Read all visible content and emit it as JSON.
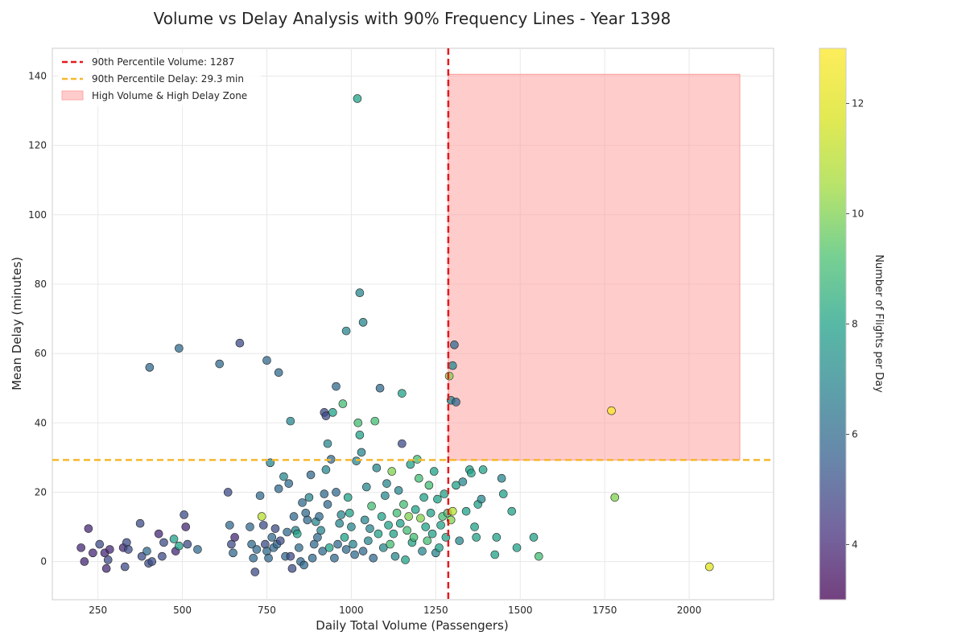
{
  "chart_data": {
    "type": "scatter",
    "title": "Volume vs Delay Analysis with 90% Frequency Lines - Year 1398",
    "xlabel": "Daily Total Volume (Passengers)",
    "ylabel": "Mean Delay (minutes)",
    "colorbar_label": "Number of Flights per Day",
    "xlim": [
      115,
      2250
    ],
    "ylim": [
      -11,
      148
    ],
    "xticks": [
      250,
      500,
      750,
      1000,
      1250,
      1500,
      1750,
      2000
    ],
    "yticks": [
      0,
      20,
      40,
      60,
      80,
      100,
      120,
      140
    ],
    "clim": [
      3,
      13
    ],
    "cticks": [
      4,
      6,
      8,
      10,
      12
    ],
    "colormap": "viridis",
    "grid": true,
    "legend_position": "top-left",
    "reference_lines": {
      "volume_p90": {
        "value": 1287,
        "label": "90th Percentile Volume: 1287",
        "color": "#e41a1c",
        "style": "dashed"
      },
      "delay_p90": {
        "value": 29.3,
        "label": "90th Percentile Delay: 29.3 min",
        "color": "#f5b82e",
        "style": "dashed"
      }
    },
    "zone": {
      "label": "High Volume & High Delay Zone",
      "x": [
        1287,
        2150
      ],
      "y": [
        29.3,
        140.5
      ],
      "color": "#ff9999"
    },
    "points": [
      [
        200,
        4,
        4
      ],
      [
        210,
        0,
        4
      ],
      [
        222,
        9.5,
        4
      ],
      [
        235,
        2.5,
        4
      ],
      [
        255,
        5,
        5
      ],
      [
        270,
        2.5,
        4
      ],
      [
        275,
        -2,
        4
      ],
      [
        280,
        0.5,
        5
      ],
      [
        285,
        3.5,
        4
      ],
      [
        325,
        4,
        4
      ],
      [
        330,
        -1.5,
        5
      ],
      [
        335,
        5.5,
        5
      ],
      [
        340,
        3.5,
        5
      ],
      [
        375,
        11,
        5
      ],
      [
        380,
        1.5,
        5
      ],
      [
        395,
        3,
        6
      ],
      [
        400,
        -0.5,
        5
      ],
      [
        410,
        0,
        5
      ],
      [
        430,
        8,
        4
      ],
      [
        440,
        1.5,
        5
      ],
      [
        445,
        5.5,
        5
      ],
      [
        475,
        6.5,
        8
      ],
      [
        480,
        3,
        4
      ],
      [
        490,
        4.5,
        8
      ],
      [
        505,
        13.5,
        5
      ],
      [
        510,
        10,
        4
      ],
      [
        515,
        5,
        5
      ],
      [
        545,
        3.5,
        6
      ],
      [
        403,
        56,
        6
      ],
      [
        490,
        61.5,
        6
      ],
      [
        610,
        57,
        6
      ],
      [
        670,
        63,
        5
      ],
      [
        750,
        58,
        6
      ],
      [
        785,
        54.5,
        6
      ],
      [
        820,
        40.5,
        7
      ],
      [
        635,
        20,
        5
      ],
      [
        640,
        10.5,
        6
      ],
      [
        645,
        5,
        5
      ],
      [
        650,
        2.5,
        6
      ],
      [
        655,
        7,
        4
      ],
      [
        700,
        10,
        6
      ],
      [
        705,
        5,
        6
      ],
      [
        710,
        1,
        6
      ],
      [
        715,
        -3,
        5
      ],
      [
        720,
        3.5,
        6
      ],
      [
        730,
        19,
        6
      ],
      [
        735,
        13,
        11
      ],
      [
        740,
        10.5,
        5
      ],
      [
        745,
        5,
        5
      ],
      [
        750,
        3,
        6
      ],
      [
        755,
        1,
        6
      ],
      [
        760,
        28.5,
        7
      ],
      [
        765,
        7,
        6
      ],
      [
        770,
        4,
        6
      ],
      [
        775,
        9.5,
        5
      ],
      [
        780,
        5,
        6
      ],
      [
        785,
        21,
        6
      ],
      [
        790,
        6,
        5
      ],
      [
        800,
        24.5,
        7
      ],
      [
        805,
        1.5,
        6
      ],
      [
        810,
        8.5,
        6
      ],
      [
        815,
        22.5,
        6
      ],
      [
        820,
        1.5,
        5
      ],
      [
        825,
        -2,
        5
      ],
      [
        830,
        13,
        6
      ],
      [
        835,
        9,
        7
      ],
      [
        840,
        8,
        8
      ],
      [
        845,
        4,
        6
      ],
      [
        850,
        0,
        6
      ],
      [
        855,
        17,
        6
      ],
      [
        860,
        -1,
        6
      ],
      [
        865,
        14,
        6
      ],
      [
        870,
        12,
        6
      ],
      [
        875,
        18.5,
        7
      ],
      [
        880,
        25,
        6
      ],
      [
        885,
        1,
        6
      ],
      [
        890,
        5,
        6
      ],
      [
        895,
        11.5,
        7
      ],
      [
        900,
        7,
        6
      ],
      [
        905,
        13,
        6
      ],
      [
        910,
        9,
        7
      ],
      [
        915,
        3,
        6
      ],
      [
        920,
        19.5,
        6
      ],
      [
        925,
        26.5,
        7
      ],
      [
        930,
        16.5,
        6
      ],
      [
        935,
        4,
        8
      ],
      [
        940,
        29.5,
        6
      ],
      [
        945,
        43,
        8
      ],
      [
        950,
        1,
        6
      ],
      [
        955,
        20,
        6
      ],
      [
        960,
        5,
        6
      ],
      [
        965,
        11,
        7
      ],
      [
        970,
        13.5,
        7
      ],
      [
        975,
        45.5,
        9
      ],
      [
        980,
        7,
        8
      ],
      [
        985,
        3.5,
        6
      ],
      [
        990,
        18.5,
        8
      ],
      [
        995,
        14,
        8
      ],
      [
        1000,
        10,
        7
      ],
      [
        1005,
        5,
        7
      ],
      [
        1010,
        2,
        6
      ],
      [
        1015,
        29,
        7
      ],
      [
        1020,
        40,
        9
      ],
      [
        1025,
        36.5,
        8
      ],
      [
        1030,
        31.5,
        7
      ],
      [
        1035,
        3,
        6
      ],
      [
        1040,
        12,
        7
      ],
      [
        1045,
        21.5,
        7
      ],
      [
        1050,
        6,
        7
      ],
      [
        1055,
        9.5,
        7
      ],
      [
        1060,
        16,
        9
      ],
      [
        1065,
        1,
        6
      ],
      [
        1070,
        40.5,
        9
      ],
      [
        1075,
        27,
        7
      ],
      [
        1080,
        8,
        8
      ],
      [
        1085,
        50,
        6
      ],
      [
        1090,
        13,
        8
      ],
      [
        1095,
        4,
        7
      ],
      [
        1100,
        19,
        7
      ],
      [
        1105,
        22.5,
        7
      ],
      [
        1110,
        10.5,
        8
      ],
      [
        1115,
        5,
        9
      ],
      [
        1120,
        26,
        10
      ],
      [
        1125,
        8,
        8
      ],
      [
        1130,
        1.5,
        7
      ],
      [
        1135,
        14,
        9
      ],
      [
        1140,
        20.5,
        7
      ],
      [
        1145,
        11,
        8
      ],
      [
        1150,
        48.5,
        8
      ],
      [
        1155,
        16.5,
        9
      ],
      [
        1160,
        0.5,
        8
      ],
      [
        1165,
        9,
        9
      ],
      [
        1170,
        13,
        10
      ],
      [
        1175,
        28,
        8
      ],
      [
        1180,
        5.5,
        8
      ],
      [
        1185,
        7,
        9
      ],
      [
        1190,
        15,
        8
      ],
      [
        1195,
        29.5,
        9
      ],
      [
        1200,
        24,
        9
      ],
      [
        1205,
        12.5,
        10
      ],
      [
        1210,
        3,
        7
      ],
      [
        1215,
        18.5,
        8
      ],
      [
        1220,
        10,
        8
      ],
      [
        1225,
        6,
        9
      ],
      [
        1230,
        22,
        9
      ],
      [
        1235,
        14,
        8
      ],
      [
        1240,
        8,
        8
      ],
      [
        1245,
        26,
        8
      ],
      [
        1250,
        2.5,
        7
      ],
      [
        1255,
        18,
        8
      ],
      [
        1260,
        4,
        8
      ],
      [
        1265,
        10.5,
        8
      ],
      [
        1270,
        13,
        9
      ],
      [
        1275,
        19.5,
        8
      ],
      [
        1280,
        7,
        8
      ],
      [
        1285,
        14,
        9
      ],
      [
        920,
        43,
        5
      ],
      [
        925,
        42,
        5
      ],
      [
        930,
        34,
        7
      ],
      [
        955,
        50.5,
        6
      ],
      [
        985,
        66.5,
        7
      ],
      [
        1025,
        77.5,
        7
      ],
      [
        1035,
        69,
        7
      ],
      [
        1018,
        133.5,
        8
      ],
      [
        1150,
        34,
        5
      ],
      [
        1290,
        53.5,
        10
      ],
      [
        1295,
        46.5,
        7
      ],
      [
        1300,
        56.5,
        7
      ],
      [
        1305,
        62.5,
        6
      ],
      [
        1310,
        46,
        6
      ],
      [
        1295,
        12,
        10
      ],
      [
        1300,
        14.5,
        11
      ],
      [
        1310,
        22,
        8
      ],
      [
        1320,
        6,
        7
      ],
      [
        1330,
        23,
        7
      ],
      [
        1340,
        14.5,
        8
      ],
      [
        1350,
        26.5,
        8
      ],
      [
        1355,
        25.5,
        8
      ],
      [
        1365,
        10,
        8
      ],
      [
        1370,
        7,
        8
      ],
      [
        1375,
        16.5,
        8
      ],
      [
        1385,
        18,
        7
      ],
      [
        1390,
        26.5,
        8
      ],
      [
        1425,
        2,
        8
      ],
      [
        1430,
        7,
        8
      ],
      [
        1445,
        24,
        7
      ],
      [
        1450,
        19.5,
        8
      ],
      [
        1475,
        14.5,
        8
      ],
      [
        1490,
        4,
        8
      ],
      [
        1540,
        7,
        8
      ],
      [
        1555,
        1.5,
        9
      ],
      [
        1770,
        43.5,
        14
      ],
      [
        1780,
        18.5,
        10
      ],
      [
        2060,
        -1.5,
        12
      ]
    ]
  }
}
